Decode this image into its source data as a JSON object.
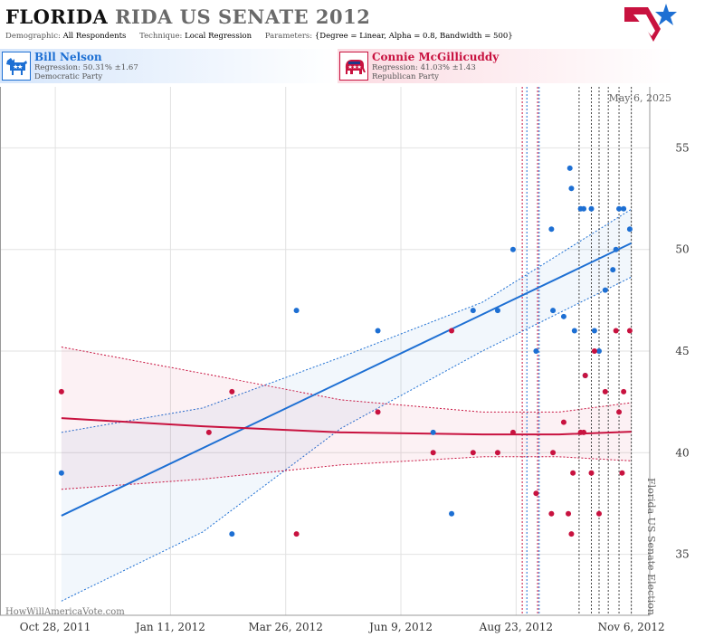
{
  "header": {
    "state": "FLORIDA",
    "race": "RIDA US SENATE 2012",
    "demographic_label": "Demographic:",
    "demographic_value": "All Respondents",
    "technique_label": "Technique:",
    "technique_value": "Local Regression",
    "parameters_label": "Parameters:",
    "parameters_value": "{Degree = Linear, Alpha = 0.8, Bandwidth = 500}"
  },
  "candidates": {
    "dem": {
      "name": "Bill Nelson",
      "regression": "Regression: 50.31% ±1.67",
      "party": "Democratic Party",
      "color": "#1d6fd3"
    },
    "rep": {
      "name": "Connie McGillicuddy",
      "regression": "Regression: 41.03% ±1.43",
      "party": "Republican Party",
      "color": "#c8123f"
    }
  },
  "chart_data": {
    "type": "scatter",
    "title": "FLORIDA RIDA US SENATE 2012",
    "x_ticks": [
      "Oct 28, 2011",
      "Jan 11, 2012",
      "Mar 26, 2012",
      "Jun 9, 2012",
      "Aug 23, 2012",
      "Nov 6, 2012"
    ],
    "y_ticks": [
      35,
      40,
      45,
      50,
      55
    ],
    "xlim": [
      "2011-09-22",
      "2012-11-18"
    ],
    "ylim": [
      32,
      58
    ],
    "date_marker": "May 6, 2025",
    "event_label": "Florida US Senate Election",
    "watermark": "HowWillAmericaVote.com",
    "grid": true,
    "vertical_event_lines": [
      {
        "date": "2012-08-27",
        "color": "#c8123f"
      },
      {
        "date": "2012-08-30",
        "color": "#1d6fd3"
      },
      {
        "date": "2012-09-06",
        "color": "#c8123f"
      },
      {
        "date": "2012-09-07",
        "color": "#1d6fd3"
      },
      {
        "date": "2012-10-03",
        "color": "#444444"
      },
      {
        "date": "2012-10-11",
        "color": "#444444"
      },
      {
        "date": "2012-10-16",
        "color": "#444444"
      },
      {
        "date": "2012-10-22",
        "color": "#444444"
      },
      {
        "date": "2012-10-29",
        "color": "#444444"
      },
      {
        "date": "2012-11-06",
        "color": "#444444"
      }
    ],
    "series": [
      {
        "name": "Bill Nelson",
        "color": "#1d6fd3",
        "points": [
          [
            "2011-11-01",
            39
          ],
          [
            "2012-02-20",
            36
          ],
          [
            "2012-04-02",
            47
          ],
          [
            "2012-05-25",
            46
          ],
          [
            "2012-06-30",
            41
          ],
          [
            "2012-07-12",
            37
          ],
          [
            "2012-07-26",
            47
          ],
          [
            "2012-08-11",
            47
          ],
          [
            "2012-08-21",
            50
          ],
          [
            "2012-09-05",
            45
          ],
          [
            "2012-09-15",
            51
          ],
          [
            "2012-09-16",
            47
          ],
          [
            "2012-09-23",
            46.7
          ],
          [
            "2012-09-27",
            54
          ],
          [
            "2012-09-28",
            53
          ],
          [
            "2012-09-30",
            46
          ],
          [
            "2012-10-04",
            52
          ],
          [
            "2012-10-06",
            52
          ],
          [
            "2012-10-07",
            43.8
          ],
          [
            "2012-10-11",
            52
          ],
          [
            "2012-10-13",
            46
          ],
          [
            "2012-10-16",
            45
          ],
          [
            "2012-10-20",
            48
          ],
          [
            "2012-10-25",
            49
          ],
          [
            "2012-10-27",
            50
          ],
          [
            "2012-10-29",
            52
          ],
          [
            "2012-11-01",
            52
          ],
          [
            "2012-11-05",
            51
          ]
        ],
        "regression": [
          [
            "2011-11-01",
            36.9
          ],
          [
            "2012-11-06",
            50.31
          ]
        ],
        "band_upper": [
          [
            "2011-11-01",
            41.0
          ],
          [
            "2012-02-01",
            42.2
          ],
          [
            "2012-05-01",
            44.7
          ],
          [
            "2012-08-01",
            47.4
          ],
          [
            "2012-11-06",
            51.98
          ]
        ],
        "band_lower": [
          [
            "2011-11-01",
            32.7
          ],
          [
            "2012-02-01",
            36.1
          ],
          [
            "2012-05-01",
            41.2
          ],
          [
            "2012-08-01",
            45.0
          ],
          [
            "2012-11-06",
            48.64
          ]
        ]
      },
      {
        "name": "Connie McGillicuddy",
        "color": "#c8123f",
        "points": [
          [
            "2011-11-01",
            43
          ],
          [
            "2012-02-05",
            41
          ],
          [
            "2012-02-20",
            43
          ],
          [
            "2012-04-02",
            36
          ],
          [
            "2012-05-25",
            42
          ],
          [
            "2012-06-30",
            40
          ],
          [
            "2012-07-12",
            46
          ],
          [
            "2012-07-26",
            40
          ],
          [
            "2012-08-11",
            40
          ],
          [
            "2012-08-21",
            41
          ],
          [
            "2012-09-05",
            38
          ],
          [
            "2012-09-15",
            37
          ],
          [
            "2012-09-16",
            40
          ],
          [
            "2012-09-23",
            41.5
          ],
          [
            "2012-09-26",
            37
          ],
          [
            "2012-09-28",
            36
          ],
          [
            "2012-09-29",
            39
          ],
          [
            "2012-10-04",
            41
          ],
          [
            "2012-10-06",
            41
          ],
          [
            "2012-10-07",
            43.8
          ],
          [
            "2012-10-11",
            39
          ],
          [
            "2012-10-13",
            45
          ],
          [
            "2012-10-16",
            37
          ],
          [
            "2012-10-20",
            43
          ],
          [
            "2012-10-27",
            46
          ],
          [
            "2012-10-29",
            42
          ],
          [
            "2012-10-31",
            39
          ],
          [
            "2012-11-01",
            43
          ],
          [
            "2012-11-05",
            46
          ]
        ],
        "regression": [
          [
            "2011-11-01",
            41.7
          ],
          [
            "2012-02-01",
            41.3
          ],
          [
            "2012-05-01",
            41.0
          ],
          [
            "2012-08-01",
            40.9
          ],
          [
            "2012-09-20",
            40.9
          ],
          [
            "2012-11-06",
            41.03
          ]
        ],
        "band_upper": [
          [
            "2011-11-01",
            45.2
          ],
          [
            "2012-02-01",
            43.9
          ],
          [
            "2012-05-01",
            42.6
          ],
          [
            "2012-08-01",
            42.0
          ],
          [
            "2012-09-20",
            42.0
          ],
          [
            "2012-11-06",
            42.46
          ]
        ],
        "band_lower": [
          [
            "2011-11-01",
            38.2
          ],
          [
            "2012-02-01",
            38.7
          ],
          [
            "2012-05-01",
            39.4
          ],
          [
            "2012-08-01",
            39.8
          ],
          [
            "2012-09-20",
            39.8
          ],
          [
            "2012-11-06",
            39.6
          ]
        ]
      }
    ]
  }
}
